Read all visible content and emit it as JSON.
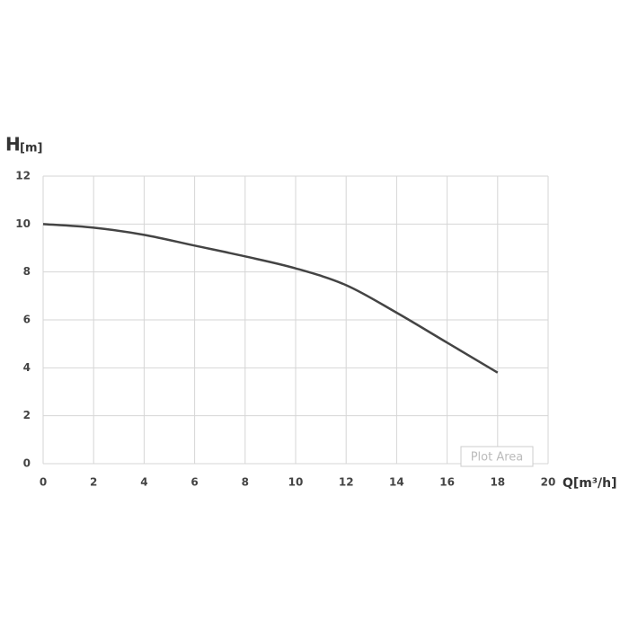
{
  "chart_data": {
    "type": "line",
    "ylabel": "H",
    "ylabel_unit": "[m]",
    "xlabel": "Q[m³/h]",
    "annotation": "Plot Area",
    "xlim": [
      0,
      20
    ],
    "xticks": [
      0,
      2,
      4,
      6,
      8,
      10,
      12,
      14,
      16,
      18,
      20
    ],
    "ylim": [
      0,
      12
    ],
    "yticks": [
      0,
      2,
      4,
      6,
      8,
      10,
      12
    ],
    "grid": true,
    "series": [
      {
        "color": "#444444",
        "x": [
          0,
          2,
          4,
          6,
          8,
          10,
          12,
          14,
          16,
          18
        ],
        "values": [
          10,
          9.85,
          9.55,
          9.1,
          8.65,
          8.15,
          7.45,
          6.3,
          5.05,
          3.8
        ]
      }
    ]
  }
}
